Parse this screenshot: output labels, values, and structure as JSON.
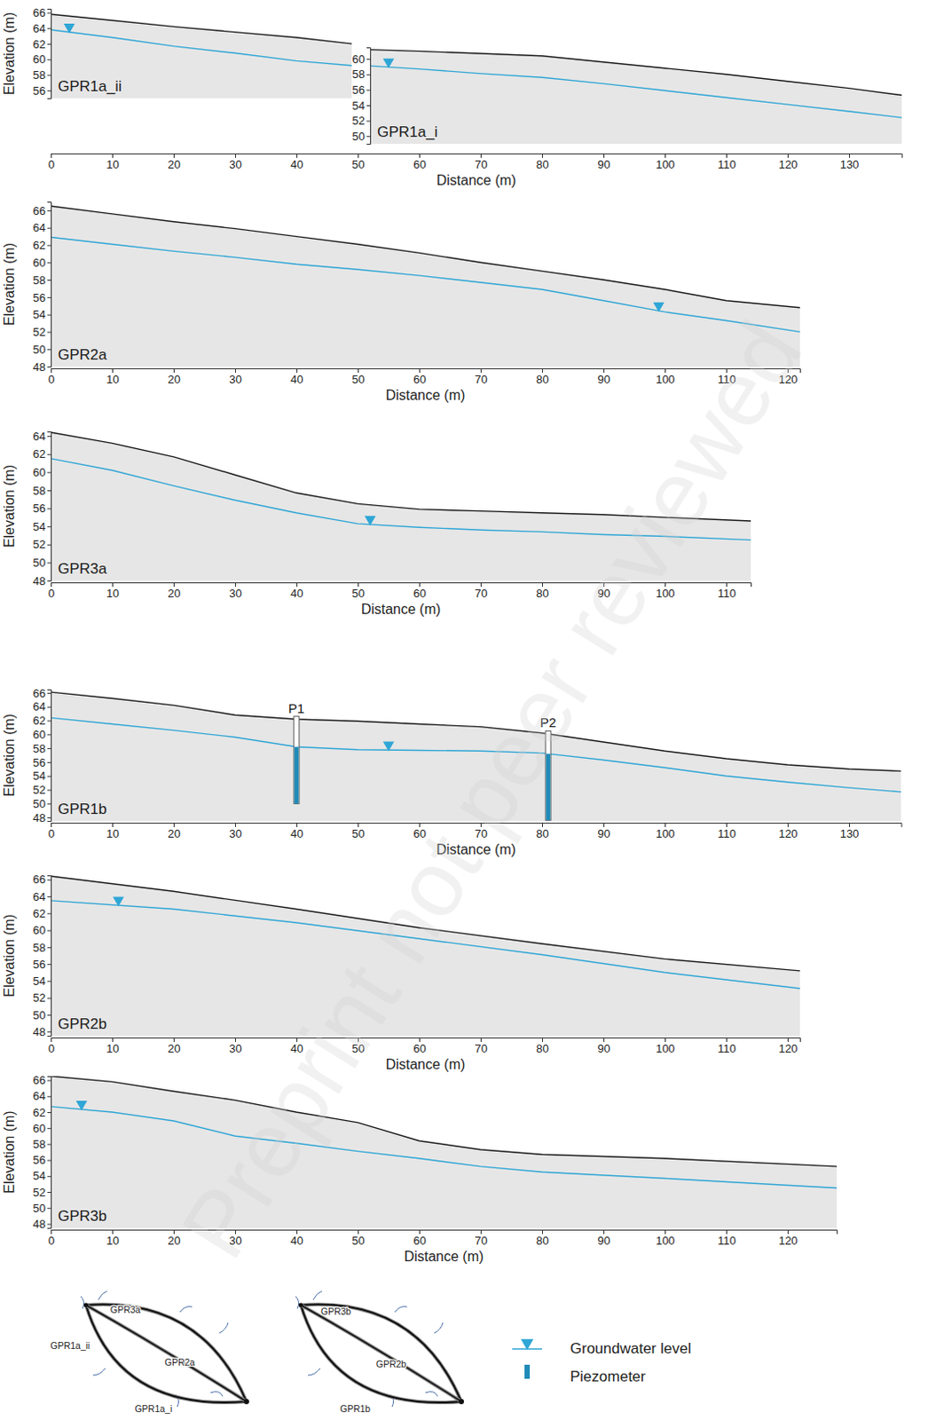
{
  "chart_data": [
    {
      "type": "line",
      "xlabel": "Distance (m)",
      "ylabel": "Elevation (m)",
      "xlim": [
        0,
        138.6
      ],
      "xticks": [
        0,
        10,
        20,
        30,
        40,
        50,
        60,
        70,
        80,
        90,
        100,
        110,
        120,
        130
      ],
      "panels": [
        {
          "title": "GPR1a_ii",
          "xlim": [
            0,
            49
          ],
          "ylim": [
            55,
            66.5
          ],
          "yticks": [
            56,
            58,
            60,
            62,
            64,
            66
          ],
          "x": [
            0,
            10,
            20,
            30,
            40,
            49
          ],
          "surface": [
            65.8,
            65.0,
            64.2,
            63.5,
            62.8,
            62.0
          ],
          "series": [
            {
              "name": "Groundwater level",
              "color": "#2ea6d6",
              "values": [
                63.8,
                62.8,
                61.7,
                60.8,
                59.8,
                59.2
              ]
            }
          ],
          "marker_x": 3
        },
        {
          "title": "GPR1a_i",
          "xlim": [
            52,
            138.6
          ],
          "ylim": [
            49,
            61.5
          ],
          "yticks": [
            50,
            52,
            54,
            56,
            58,
            60
          ],
          "x": [
            52,
            60,
            70,
            80,
            90,
            100,
            110,
            120,
            130,
            138.6
          ],
          "surface": [
            61.2,
            61.0,
            60.7,
            60.4,
            59.6,
            58.8,
            58.0,
            57.1,
            56.2,
            55.3
          ],
          "series": [
            {
              "name": "Groundwater level",
              "color": "#2ea6d6",
              "values": [
                59.1,
                58.7,
                58.1,
                57.6,
                56.8,
                55.9,
                55.0,
                54.1,
                53.2,
                52.4
              ]
            }
          ],
          "marker_x": 55
        }
      ]
    },
    {
      "type": "line",
      "xlabel": "Distance (m)",
      "ylabel": "Elevation (m)",
      "xlim": [
        0,
        122
      ],
      "xticks": [
        0,
        10,
        20,
        30,
        40,
        50,
        60,
        70,
        80,
        90,
        100,
        110,
        120
      ],
      "panels": [
        {
          "title": "GPR2a",
          "xlim": [
            0,
            122
          ],
          "ylim": [
            48,
            67
          ],
          "yticks": [
            48,
            50,
            52,
            54,
            56,
            58,
            60,
            62,
            64,
            66
          ],
          "x": [
            0,
            10,
            20,
            30,
            40,
            50,
            60,
            70,
            80,
            90,
            100,
            110,
            122
          ],
          "surface": [
            66.5,
            65.6,
            64.7,
            63.9,
            63.0,
            62.1,
            61.1,
            60.0,
            59.0,
            58.0,
            56.9,
            55.6,
            54.8
          ],
          "series": [
            {
              "name": "Groundwater level",
              "color": "#2ea6d6",
              "values": [
                62.9,
                62.1,
                61.3,
                60.6,
                59.8,
                59.2,
                58.5,
                57.7,
                56.9,
                55.6,
                54.3,
                53.3,
                52.0
              ]
            }
          ],
          "marker_x": 99
        }
      ]
    },
    {
      "type": "line",
      "xlabel": "Distance (m)",
      "ylabel": "Elevation (m)",
      "xlim": [
        0,
        114
      ],
      "xticks": [
        0,
        10,
        20,
        30,
        40,
        50,
        60,
        70,
        80,
        90,
        100,
        110
      ],
      "panels": [
        {
          "title": "GPR3a",
          "xlim": [
            0,
            114
          ],
          "ylim": [
            48,
            64.5
          ],
          "yticks": [
            48,
            50,
            52,
            54,
            56,
            58,
            60,
            62,
            64
          ],
          "x": [
            0,
            10,
            20,
            30,
            40,
            50,
            60,
            70,
            80,
            90,
            100,
            114
          ],
          "surface": [
            64.4,
            63.2,
            61.7,
            59.7,
            57.7,
            56.5,
            55.9,
            55.7,
            55.5,
            55.3,
            55.0,
            54.6
          ],
          "series": [
            {
              "name": "Groundwater level",
              "color": "#2ea6d6",
              "values": [
                61.5,
                60.2,
                58.5,
                56.9,
                55.5,
                54.3,
                53.9,
                53.6,
                53.4,
                53.1,
                52.9,
                52.5
              ]
            }
          ],
          "marker_x": 52
        }
      ]
    },
    {
      "type": "line",
      "xlabel": "Distance (m)",
      "ylabel": "Elevation (m)",
      "xlim": [
        0,
        138.5
      ],
      "xticks": [
        0,
        10,
        20,
        30,
        40,
        50,
        60,
        70,
        80,
        90,
        100,
        110,
        120,
        130
      ],
      "panels": [
        {
          "title": "GPR1b",
          "xlim": [
            0,
            138.5
          ],
          "ylim": [
            47.5,
            66.5
          ],
          "yticks": [
            48,
            50,
            52,
            54,
            56,
            58,
            60,
            62,
            64,
            66
          ],
          "x": [
            0,
            10,
            20,
            30,
            40,
            50,
            60,
            70,
            80,
            90,
            100,
            110,
            120,
            130,
            138.5
          ],
          "surface": [
            66.1,
            65.2,
            64.2,
            62.8,
            62.2,
            61.9,
            61.5,
            61.1,
            60.2,
            58.9,
            57.6,
            56.5,
            55.6,
            55.0,
            54.7
          ],
          "series": [
            {
              "name": "Groundwater level",
              "color": "#2ea6d6",
              "values": [
                62.4,
                61.5,
                60.6,
                59.6,
                58.2,
                57.8,
                57.7,
                57.6,
                57.3,
                56.3,
                55.2,
                54.0,
                53.1,
                52.3,
                51.7
              ]
            }
          ],
          "marker_x": 55,
          "piezometers": [
            {
              "label": "P1",
              "x": 40,
              "top": 62.6,
              "bottom": 50.0
            },
            {
              "label": "P2",
              "x": 81,
              "top": 60.5,
              "bottom": 47.6
            }
          ]
        }
      ]
    },
    {
      "type": "line",
      "xlabel": "Distance (m)",
      "ylabel": "Elevation (m)",
      "xlim": [
        0,
        122
      ],
      "xticks": [
        0,
        10,
        20,
        30,
        40,
        50,
        60,
        70,
        80,
        90,
        100,
        110,
        120
      ],
      "panels": [
        {
          "title": "GPR2b",
          "xlim": [
            0,
            122
          ],
          "ylim": [
            47.5,
            66.5
          ],
          "yticks": [
            48,
            50,
            52,
            54,
            56,
            58,
            60,
            62,
            64,
            66
          ],
          "x": [
            0,
            20,
            40,
            60,
            80,
            100,
            122
          ],
          "surface": [
            66.4,
            64.6,
            62.5,
            60.3,
            58.4,
            56.6,
            55.2
          ],
          "series": [
            {
              "name": "Groundwater level",
              "color": "#2ea6d6",
              "values": [
                63.5,
                62.5,
                60.9,
                59.0,
                57.1,
                55.0,
                53.1
              ]
            }
          ],
          "marker_x": 11
        }
      ]
    },
    {
      "type": "line",
      "xlabel": "Distance (m)",
      "ylabel": "Elevation (m)",
      "xlim": [
        0,
        128
      ],
      "xticks": [
        0,
        10,
        20,
        30,
        40,
        50,
        60,
        70,
        80,
        90,
        100,
        110,
        120
      ],
      "panels": [
        {
          "title": "GPR3b",
          "xlim": [
            0,
            128
          ],
          "ylim": [
            47.5,
            66.5
          ],
          "yticks": [
            48,
            50,
            52,
            54,
            56,
            58,
            60,
            62,
            64,
            66
          ],
          "x": [
            0,
            10,
            20,
            30,
            40,
            50,
            60,
            70,
            80,
            100,
            128
          ],
          "surface": [
            66.5,
            65.8,
            64.6,
            63.5,
            62.0,
            60.7,
            58.4,
            57.3,
            56.7,
            56.2,
            55.2
          ],
          "series": [
            {
              "name": "Groundwater level",
              "color": "#2ea6d6",
              "values": [
                62.7,
                62.0,
                60.9,
                59.0,
                58.1,
                57.1,
                56.2,
                55.2,
                54.5,
                53.7,
                52.5
              ]
            }
          ],
          "marker_x": 5
        }
      ]
    }
  ],
  "maps": [
    {
      "labels": [
        "GPR3a",
        "GPR1a_ii",
        "GPR2a",
        "GPR1a_i"
      ]
    },
    {
      "labels": [
        "GPR3b",
        "GPR2b",
        "GPR1b"
      ]
    }
  ],
  "legend_entries": [
    {
      "label": "Groundwater level",
      "color": "#2ea6d6"
    },
    {
      "label": "Piezometer",
      "color": "#1f8bb8"
    }
  ],
  "watermark": "Preprint not peer reviewed"
}
